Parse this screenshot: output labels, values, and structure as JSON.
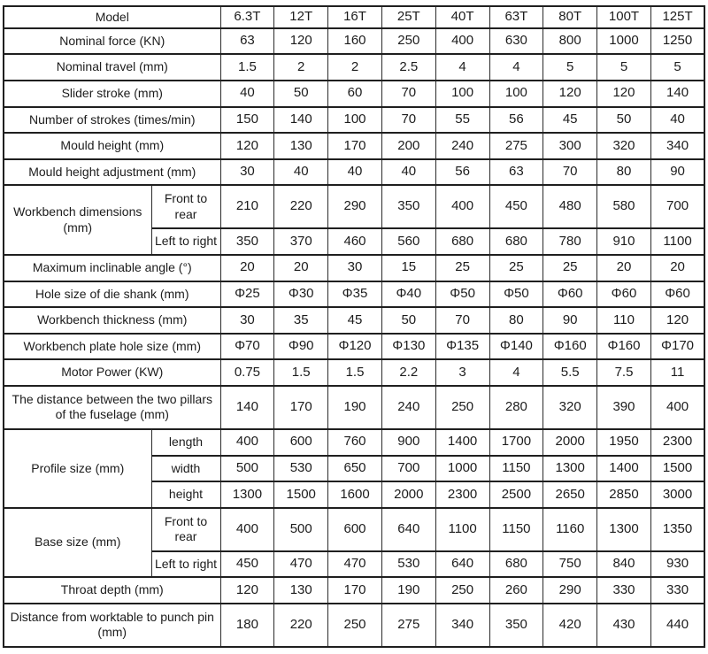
{
  "colors": {
    "background": "#ffffff",
    "border": "#1f1f1f",
    "text": "#1c1c1c"
  },
  "table": {
    "title": "press-machine-specification-table",
    "columns_label": "Model",
    "model_columns": [
      "6.3T",
      "12T",
      "16T",
      "25T",
      "40T",
      "63T",
      "80T",
      "100T",
      "125T"
    ],
    "rows": [
      {
        "label": "Nominal force (KN)",
        "values": [
          "63",
          "120",
          "160",
          "250",
          "400",
          "630",
          "800",
          "1000",
          "1250"
        ]
      },
      {
        "label": "Nominal travel (mm)",
        "values": [
          "1.5",
          "2",
          "2",
          "2.5",
          "4",
          "4",
          "5",
          "5",
          "5"
        ]
      },
      {
        "label": "Slider stroke (mm)",
        "values": [
          "40",
          "50",
          "60",
          "70",
          "100",
          "100",
          "120",
          "120",
          "140"
        ]
      },
      {
        "label": "Number of strokes (times/min)",
        "values": [
          "150",
          "140",
          "100",
          "70",
          "55",
          "56",
          "45",
          "50",
          "40"
        ]
      },
      {
        "label": "Mould height (mm)",
        "values": [
          "120",
          "130",
          "170",
          "200",
          "240",
          "275",
          "300",
          "320",
          "340"
        ]
      },
      {
        "label": "Mould height adjustment (mm)",
        "values": [
          "30",
          "40",
          "40",
          "40",
          "56",
          "63",
          "70",
          "80",
          "90"
        ]
      },
      {
        "label": "Workbench dimensions (mm)",
        "subrows": [
          {
            "label": "Front to rear",
            "values": [
              "210",
              "220",
              "290",
              "350",
              "400",
              "450",
              "480",
              "580",
              "700"
            ]
          },
          {
            "label": "Left to right",
            "values": [
              "350",
              "370",
              "460",
              "560",
              "680",
              "680",
              "780",
              "910",
              "1100"
            ]
          }
        ]
      },
      {
        "label": "Maximum inclinable angle (°)",
        "values": [
          "20",
          "20",
          "30",
          "15",
          "25",
          "25",
          "25",
          "20",
          "20"
        ]
      },
      {
        "label": "Hole size of die shank (mm)",
        "values": [
          "Φ25",
          "Φ30",
          "Φ35",
          "Φ40",
          "Φ50",
          "Φ50",
          "Φ60",
          "Φ60",
          "Φ60"
        ]
      },
      {
        "label": "Workbench thickness (mm)",
        "values": [
          "30",
          "35",
          "45",
          "50",
          "70",
          "80",
          "90",
          "110",
          "120"
        ]
      },
      {
        "label": "Workbench plate hole size (mm)",
        "values": [
          "Φ70",
          "Φ90",
          "Φ120",
          "Φ130",
          "Φ135",
          "Φ140",
          "Φ160",
          "Φ160",
          "Φ170"
        ]
      },
      {
        "label": "Motor Power (KW)",
        "values": [
          "0.75",
          "1.5",
          "1.5",
          "2.2",
          "3",
          "4",
          "5.5",
          "7.5",
          "11"
        ]
      },
      {
        "label": "The distance between the two pillars of the fuselage (mm)",
        "values": [
          "140",
          "170",
          "190",
          "240",
          "250",
          "280",
          "320",
          "390",
          "400"
        ]
      },
      {
        "label": "Profile size (mm)",
        "subrows": [
          {
            "label": "length",
            "values": [
              "400",
              "600",
              "760",
              "900",
              "1400",
              "1700",
              "2000",
              "1950",
              "2300"
            ]
          },
          {
            "label": "width",
            "values": [
              "500",
              "530",
              "650",
              "700",
              "1000",
              "1150",
              "1300",
              "1400",
              "1500"
            ]
          },
          {
            "label": "height",
            "values": [
              "1300",
              "1500",
              "1600",
              "2000",
              "2300",
              "2500",
              "2650",
              "2850",
              "3000"
            ]
          }
        ]
      },
      {
        "label": "Base size (mm)",
        "subrows": [
          {
            "label": "Front to rear",
            "values": [
              "400",
              "500",
              "600",
              "640",
              "1100",
              "1150",
              "1160",
              "1300",
              "1350"
            ]
          },
          {
            "label": "Left to right",
            "values": [
              "450",
              "470",
              "470",
              "530",
              "640",
              "680",
              "750",
              "840",
              "930"
            ]
          }
        ]
      },
      {
        "label": "Throat depth (mm)",
        "values": [
          "120",
          "130",
          "170",
          "190",
          "250",
          "260",
          "290",
          "330",
          "330"
        ]
      },
      {
        "label": "Distance from worktable to punch pin (mm)",
        "values": [
          "180",
          "220",
          "250",
          "275",
          "340",
          "350",
          "420",
          "430",
          "440"
        ]
      }
    ]
  }
}
